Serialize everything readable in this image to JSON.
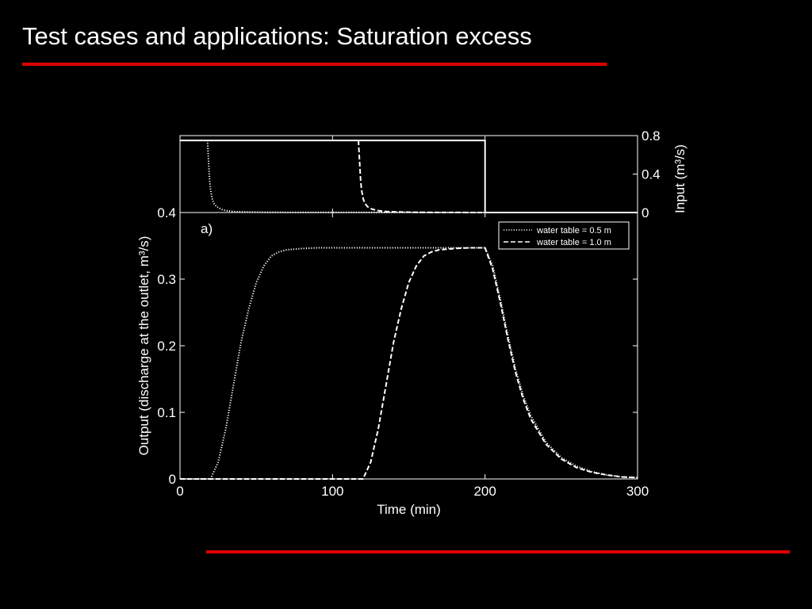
{
  "slide": {
    "title": "Test cases and applications: Saturation excess"
  },
  "colors": {
    "background": "#000000",
    "accent_rule": "#e00000",
    "foreground": "#ffffff"
  },
  "chart_data": [
    {
      "panel": "top",
      "type": "line",
      "xlabel": "",
      "ylabel": "Input (m³/s)",
      "xlim": [
        0,
        300
      ],
      "ylim": [
        0,
        0.8
      ],
      "yticks": [
        "0",
        "0.4",
        "0.8"
      ],
      "y_axis_side": "right",
      "series": [
        {
          "style": "solid",
          "x": [
            0,
            200,
            200,
            300
          ],
          "y": [
            0.75,
            0.75,
            0,
            0
          ]
        },
        {
          "style": "dotted",
          "x": [
            18,
            18.5,
            19,
            19.5,
            20,
            21,
            22,
            24,
            27,
            30,
            35,
            45,
            60,
            200,
            300
          ],
          "y": [
            0.75,
            0.6,
            0.45,
            0.32,
            0.24,
            0.15,
            0.1,
            0.06,
            0.035,
            0.02,
            0.01,
            0.005,
            0.002,
            0.0,
            0.0
          ]
        },
        {
          "style": "dashed",
          "x": [
            117,
            117.5,
            118,
            118.5,
            119,
            120,
            121,
            123,
            126,
            130,
            135,
            145,
            160,
            200,
            300
          ],
          "y": [
            0.75,
            0.6,
            0.45,
            0.32,
            0.24,
            0.15,
            0.1,
            0.06,
            0.035,
            0.02,
            0.01,
            0.005,
            0.002,
            0.0,
            0.0
          ]
        }
      ]
    },
    {
      "panel": "bottom",
      "type": "line",
      "annotation": "a)",
      "xlabel": "Time (min)",
      "ylabel": "Output (discharge at the outlet, m³/s)",
      "xlim": [
        0,
        300
      ],
      "ylim": [
        0,
        0.4
      ],
      "xticks": [
        "0",
        "100",
        "200",
        "300"
      ],
      "yticks": [
        "0",
        "0.1",
        "0.2",
        "0.3",
        "0.4"
      ],
      "legend": "top-right",
      "series": [
        {
          "name": "water table = 0.5 m",
          "style": "dotted",
          "x": [
            0,
            20,
            25,
            30,
            35,
            40,
            45,
            50,
            55,
            60,
            65,
            70,
            80,
            90,
            100,
            150,
            200,
            205,
            210,
            215,
            220,
            225,
            230,
            240,
            250,
            260,
            270,
            280,
            290,
            300
          ],
          "y": [
            0,
            0,
            0.025,
            0.075,
            0.14,
            0.205,
            0.255,
            0.295,
            0.32,
            0.335,
            0.341,
            0.344,
            0.346,
            0.347,
            0.347,
            0.347,
            0.347,
            0.32,
            0.27,
            0.215,
            0.165,
            0.125,
            0.095,
            0.055,
            0.032,
            0.019,
            0.011,
            0.006,
            0.003,
            0.002
          ]
        },
        {
          "name": "water table = 1.0 m",
          "style": "dashed",
          "x": [
            0,
            120,
            125,
            130,
            135,
            140,
            145,
            150,
            155,
            160,
            165,
            170,
            180,
            190,
            200,
            205,
            210,
            215,
            220,
            225,
            230,
            240,
            250,
            260,
            270,
            280,
            290,
            300
          ],
          "y": [
            0,
            0,
            0.025,
            0.075,
            0.14,
            0.205,
            0.255,
            0.295,
            0.32,
            0.335,
            0.341,
            0.344,
            0.346,
            0.347,
            0.347,
            0.315,
            0.265,
            0.21,
            0.16,
            0.12,
            0.09,
            0.052,
            0.03,
            0.017,
            0.01,
            0.006,
            0.003,
            0.002
          ]
        }
      ]
    }
  ]
}
